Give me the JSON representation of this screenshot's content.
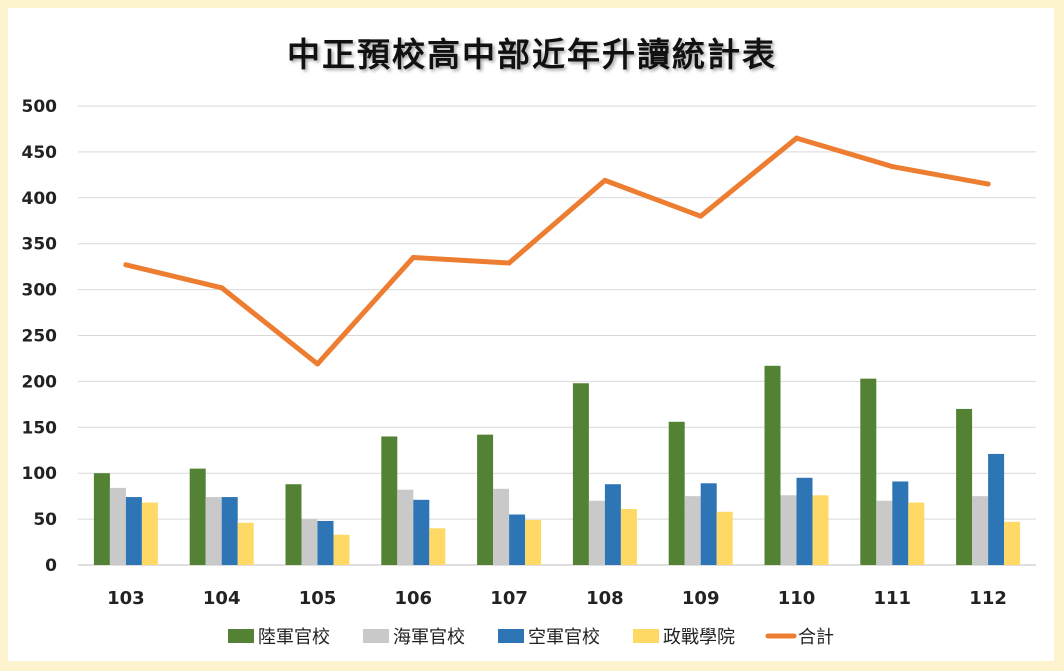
{
  "chart_data": {
    "type": "bar",
    "title": "中正預校高中部近年升讀統計表",
    "xlabel": "",
    "ylabel": "",
    "ylim": [
      0,
      500
    ],
    "yticks": [
      0,
      50,
      100,
      150,
      200,
      250,
      300,
      350,
      400,
      450,
      500
    ],
    "grid": true,
    "legend_position": "bottom",
    "categories": [
      "103",
      "104",
      "105",
      "106",
      "107",
      "108",
      "109",
      "110",
      "111",
      "112"
    ],
    "series": [
      {
        "name": "陸軍官校",
        "type": "bar",
        "color": "#548235",
        "values": [
          100,
          105,
          88,
          140,
          142,
          198,
          156,
          217,
          203,
          170
        ]
      },
      {
        "name": "海軍官校",
        "type": "bar",
        "color": "#c9c9c9",
        "values": [
          84,
          74,
          50,
          82,
          83,
          70,
          75,
          76,
          70,
          75
        ]
      },
      {
        "name": "空軍官校",
        "type": "bar",
        "color": "#2e75b6",
        "values": [
          74,
          74,
          48,
          71,
          55,
          88,
          89,
          95,
          91,
          121
        ]
      },
      {
        "name": "政戰學院",
        "type": "bar",
        "color": "#ffd966",
        "values": [
          68,
          46,
          33,
          40,
          49,
          61,
          58,
          76,
          68,
          47
        ]
      },
      {
        "name": "合計",
        "type": "line",
        "color": "#ed7d31",
        "values": [
          327,
          302,
          219,
          335,
          329,
          419,
          380,
          465,
          434,
          415
        ]
      }
    ]
  }
}
